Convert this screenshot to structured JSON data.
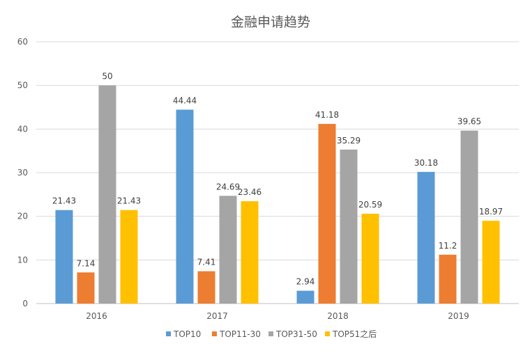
{
  "chart_data": {
    "type": "bar",
    "title": "金融申请趋势",
    "xlabel": "",
    "ylabel": "",
    "categories": [
      "2016",
      "2017",
      "2018",
      "2019"
    ],
    "series": [
      {
        "name": "TOP10",
        "color": "#5b9bd5",
        "values": [
          21.43,
          44.44,
          2.94,
          30.18
        ]
      },
      {
        "name": "TOP11-30",
        "color": "#ed7d31",
        "values": [
          7.14,
          7.41,
          41.18,
          11.2
        ]
      },
      {
        "name": "TOP31-50",
        "color": "#a5a5a5",
        "values": [
          50,
          24.69,
          35.29,
          39.65
        ]
      },
      {
        "name": "TOP51之后",
        "color": "#ffc000",
        "values": [
          21.43,
          23.46,
          20.59,
          18.97
        ]
      }
    ],
    "ylim": [
      0,
      60
    ],
    "yticks": [
      0,
      10,
      20,
      30,
      40,
      50,
      60
    ],
    "grid": true,
    "legend_position": "bottom"
  }
}
